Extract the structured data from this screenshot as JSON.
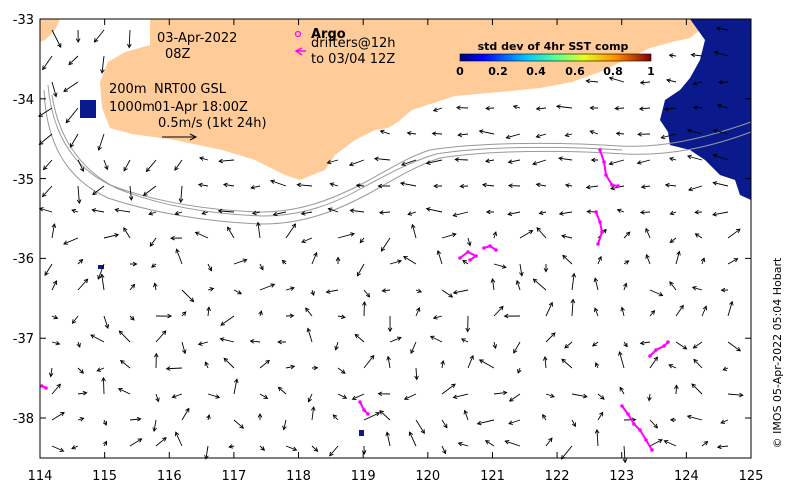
{
  "map": {
    "date_line1": "03-Apr-2022",
    "date_line2": "08Z",
    "depth_line1": "200m",
    "depth_line2": "1000m",
    "product_line1": "NRT00 GSL",
    "product_line2": "01-Apr 18:00Z",
    "scale_label": "0.5m/s (1kt 24h)",
    "argo_label": "Argo",
    "drifters_line1": "drifters@12h",
    "drifters_line2": "to 03/04 12Z",
    "colorbar_title": "std dev of 4hr SST comp",
    "colorbar_ticks": [
      "0",
      "0.2",
      "0.4",
      "0.6",
      "0.8",
      "1"
    ],
    "credit": "© IMOS 05-Apr-2022 05:04 Hobart",
    "x_ticks": [
      "114",
      "115",
      "116",
      "117",
      "118",
      "119",
      "120",
      "121",
      "122",
      "123",
      "124",
      "125"
    ],
    "y_ticks": [
      "-33",
      "-34",
      "-35",
      "-36",
      "-37",
      "-38"
    ],
    "colors": {
      "land": "#ffcc99",
      "drifter": "#ff00ff",
      "sst_patch": "#0a1a8c",
      "contour": "#999999",
      "arrow": "#000000"
    }
  }
}
